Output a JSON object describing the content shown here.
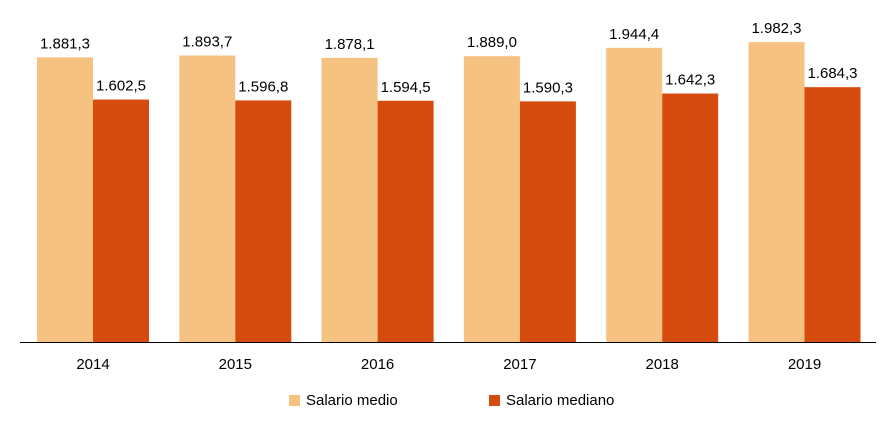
{
  "chart_data": {
    "type": "bar",
    "categories": [
      "2014",
      "2015",
      "2016",
      "2017",
      "2018",
      "2019"
    ],
    "series": [
      {
        "name": "Salario medio",
        "color": "#F5C281",
        "values": [
          1881.3,
          1893.7,
          1878.1,
          1889.0,
          1944.4,
          1982.3
        ],
        "labels": [
          "1.881,3",
          "1.893,7",
          "1.878,1",
          "1.889,0",
          "1.944,4",
          "1.982,3"
        ]
      },
      {
        "name": "Salario mediano",
        "color": "#D64B0E",
        "values": [
          1602.5,
          1596.8,
          1594.5,
          1590.3,
          1642.3,
          1684.3
        ],
        "labels": [
          "1.602,5",
          "1.596,8",
          "1.594,5",
          "1.590,3",
          "1.642,3",
          "1.684,3"
        ]
      }
    ],
    "title": "",
    "xlabel": "",
    "ylabel": "",
    "ylim": [
      0,
      2000
    ],
    "grid": false,
    "legend_position": "bottom"
  }
}
